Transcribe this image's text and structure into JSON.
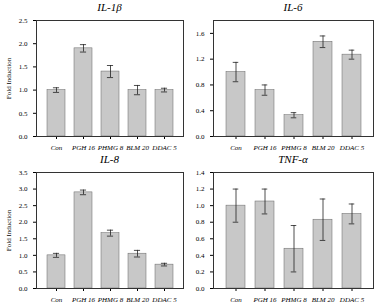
{
  "chart_data": [
    {
      "type": "bar",
      "title": "IL-1β",
      "categories": [
        "Con",
        "PGH 16",
        "PHMG 8",
        "BLM 20",
        "DDAC 5"
      ],
      "values": [
        1.0,
        1.9,
        1.4,
        1.0,
        1.0
      ],
      "errors": [
        0.05,
        0.08,
        0.13,
        0.1,
        0.04
      ],
      "color": "#c8c8c8",
      "ylabel": "Fold Induction",
      "ylim": [
        0.0,
        2.5
      ],
      "yticks": [
        {
          "value": 0.0,
          "label": "0.0"
        },
        0.5,
        {
          "value": 1.0,
          "label": "1.0"
        },
        1.5,
        {
          "value": 2.0,
          "label": "2.0"
        },
        2.5
      ]
    },
    {
      "type": "bar",
      "title": "IL-6",
      "categories": [
        "Con",
        "PGH 16",
        "PHMG 8",
        "BLM 20",
        "DDAC 5"
      ],
      "values": [
        1.0,
        0.72,
        0.33,
        1.47,
        1.27
      ],
      "errors": [
        0.15,
        0.08,
        0.04,
        0.09,
        0.07
      ],
      "color": "#c8c8c8",
      "ylim": [
        0.0,
        1.8
      ],
      "yticks": [
        {
          "value": 0.0,
          "label": "0.0"
        },
        0.4,
        0.8,
        1.2,
        1.6
      ]
    },
    {
      "type": "bar",
      "title": "IL-8",
      "categories": [
        "Con",
        "PGH 16",
        "PHMG 8",
        "BLM 20",
        "DDAC 5"
      ],
      "values": [
        1.0,
        2.9,
        1.67,
        1.05,
        0.72
      ],
      "errors": [
        0.06,
        0.07,
        0.09,
        0.1,
        0.04
      ],
      "color": "#c8c8c8",
      "ylabel": "Fold Induction",
      "ylim": [
        0.0,
        3.5
      ],
      "yticks": [
        {
          "value": 0.0,
          "label": "0.0"
        },
        0.5,
        {
          "value": 1.0,
          "label": "1.0"
        },
        1.5,
        {
          "value": 2.0,
          "label": "2.0"
        },
        2.5,
        {
          "value": 3.0,
          "label": "3.0"
        },
        3.5
      ]
    },
    {
      "type": "bar",
      "title": "TNF-α",
      "categories": [
        "Con",
        "PGH 16",
        "PHMG 8",
        "BLM 20",
        "DDAC 5"
      ],
      "values": [
        1.0,
        1.05,
        0.48,
        0.83,
        0.9
      ],
      "errors": [
        0.2,
        0.15,
        0.28,
        0.25,
        0.12
      ],
      "color": "#c8c8c8",
      "ylim": [
        0.0,
        1.4
      ],
      "yticks": [
        {
          "value": 0.0,
          "label": "0.0"
        },
        0.2,
        0.4,
        0.6,
        0.8,
        {
          "value": 1.0,
          "label": "1.0"
        },
        1.2,
        1.4
      ]
    }
  ]
}
